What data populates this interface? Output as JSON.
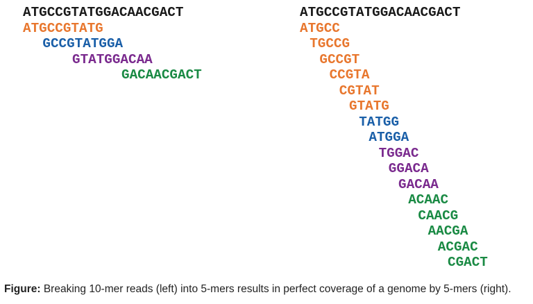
{
  "left_panel": {
    "genome": "ATGCCGTATGGACAACGACT",
    "reads": [
      {
        "text": "ATGCCGTATG",
        "offset": 0,
        "color": "orange"
      },
      {
        "text": "GCCGTATGGA",
        "offset": 2,
        "color": "blue"
      },
      {
        "text": "GTATGGACAA",
        "offset": 5,
        "color": "purple"
      },
      {
        "text": "GACAACGACT",
        "offset": 10,
        "color": "green"
      }
    ]
  },
  "right_panel": {
    "genome": "ATGCCGTATGGACAACGACT",
    "kmers": [
      {
        "text": "ATGCC",
        "offset": 0,
        "color": "orange"
      },
      {
        "text": "TGCCG",
        "offset": 1,
        "color": "orange"
      },
      {
        "text": "GCCGT",
        "offset": 2,
        "color": "orange"
      },
      {
        "text": "CCGTA",
        "offset": 3,
        "color": "orange"
      },
      {
        "text": "CGTAT",
        "offset": 4,
        "color": "orange"
      },
      {
        "text": "GTATG",
        "offset": 5,
        "color": "orange"
      },
      {
        "text": "TATGG",
        "offset": 6,
        "color": "blue"
      },
      {
        "text": "ATGGA",
        "offset": 7,
        "color": "blue"
      },
      {
        "text": "TGGAC",
        "offset": 8,
        "color": "purple"
      },
      {
        "text": "GGACA",
        "offset": 9,
        "color": "purple"
      },
      {
        "text": "GACAA",
        "offset": 10,
        "color": "purple"
      },
      {
        "text": "ACAAC",
        "offset": 11,
        "color": "green"
      },
      {
        "text": "CAACG",
        "offset": 12,
        "color": "green"
      },
      {
        "text": "AACGA",
        "offset": 13,
        "color": "green"
      },
      {
        "text": "ACGAC",
        "offset": 14,
        "color": "green"
      },
      {
        "text": "CGACT",
        "offset": 15,
        "color": "green"
      }
    ]
  },
  "caption": {
    "label": "Figure:",
    "text": " Breaking 10-mer reads (left) into 5-mers results in perfect coverage of a genome by 5-mers (right)."
  }
}
